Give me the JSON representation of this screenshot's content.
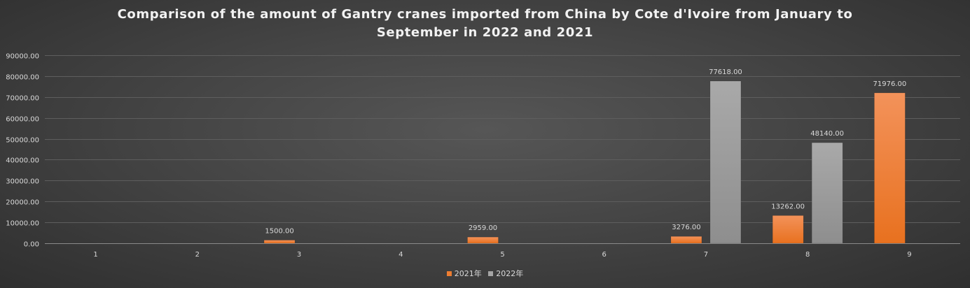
{
  "chart_data": {
    "type": "bar",
    "title_lines": [
      "Comparison of the amount of Gantry cranes imported from China by Cote d'Ivoire from January to",
      "September in 2022 and 2021"
    ],
    "categories": [
      "1",
      "2",
      "3",
      "4",
      "5",
      "6",
      "7",
      "8",
      "9"
    ],
    "series": [
      {
        "name": "2021年",
        "color": "#ed7d31",
        "values": [
          null,
          null,
          1500,
          null,
          2959,
          null,
          3276,
          13262,
          71976
        ],
        "labels": [
          "",
          "",
          "1500.00",
          "",
          "2959.00",
          "",
          "3276.00",
          "13262.00",
          "71976.00"
        ]
      },
      {
        "name": "2022年",
        "color": "#a5a5a5",
        "values": [
          null,
          null,
          null,
          null,
          null,
          null,
          77618,
          48140,
          null
        ],
        "labels": [
          "",
          "",
          "",
          "",
          "",
          "",
          "77618.00",
          "48140.00",
          ""
        ]
      }
    ],
    "yticks": [
      "0.00",
      "10000.00",
      "20000.00",
      "30000.00",
      "40000.00",
      "50000.00",
      "60000.00",
      "70000.00",
      "80000.00",
      "90000.00"
    ],
    "ylim": [
      0,
      90000
    ],
    "xlabel": "",
    "ylabel": "",
    "grid": true,
    "legend_position": "bottom"
  }
}
